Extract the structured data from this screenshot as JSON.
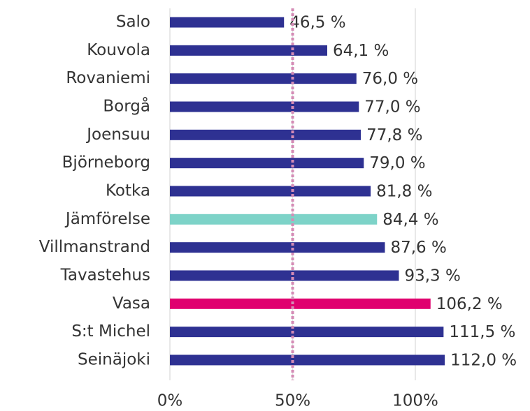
{
  "chart_data": {
    "type": "bar",
    "orientation": "horizontal",
    "categories": [
      "Salo",
      "Kouvola",
      "Rovaniemi",
      "Borgå",
      "Joensuu",
      "Björneborg",
      "Kotka",
      "Jämförelse",
      "Villmanstrand",
      "Tavastehus",
      "Vasa",
      "S:t Michel",
      "Seinäjoki"
    ],
    "values": [
      46.5,
      64.1,
      76.0,
      77.0,
      77.8,
      79.0,
      81.8,
      84.4,
      87.6,
      93.3,
      106.2,
      111.5,
      112.0
    ],
    "value_labels": [
      "46,5 %",
      "64,1 %",
      "76,0 %",
      "77,0 %",
      "77,8 %",
      "79,0 %",
      "81,8 %",
      "84,4 %",
      "87,6 %",
      "93,3 %",
      "106,2 %",
      "111,5 %",
      "112,0 %"
    ],
    "colors": [
      "#2e3192",
      "#2e3192",
      "#2e3192",
      "#2e3192",
      "#2e3192",
      "#2e3192",
      "#2e3192",
      "#7dd3c8",
      "#2e3192",
      "#2e3192",
      "#e0006f",
      "#2e3192",
      "#2e3192"
    ],
    "xlim": [
      0,
      140
    ],
    "xticks": [
      {
        "value": 0,
        "label": "0%"
      },
      {
        "value": 50,
        "label": "50%"
      },
      {
        "value": 100,
        "label": "100%"
      }
    ],
    "grid": true,
    "reference_line": {
      "value": 50,
      "color": "#d48bb5"
    }
  }
}
